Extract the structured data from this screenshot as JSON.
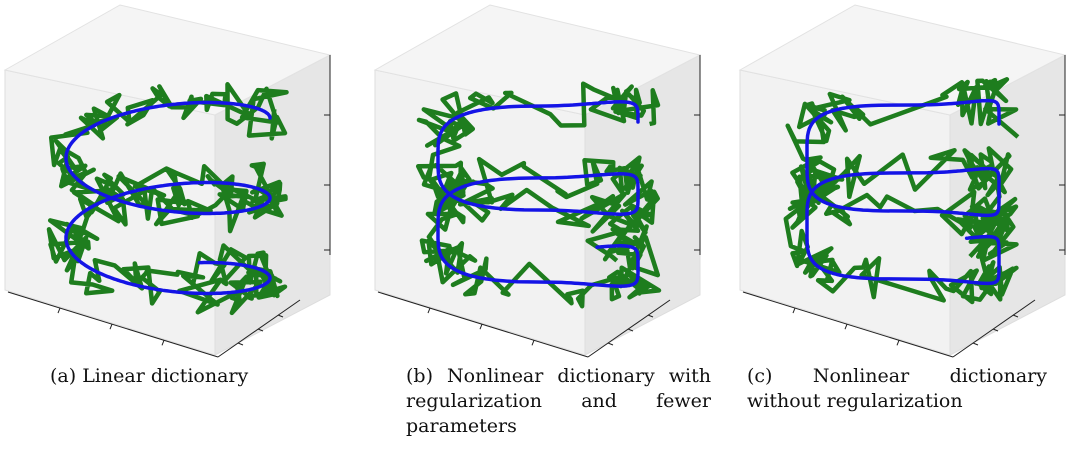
{
  "figure": {
    "captions": [
      "(a) Linear dictionary",
      "(b) Nonlinear dictionary with regularization and fewer parameters",
      "(c) Nonlinear dictionary without regularization"
    ]
  },
  "colors": {
    "noisy_trajectory": "#1e7d1e",
    "fitted_curve": "#1414e6",
    "pane_light": "#f2f2f2",
    "pane_dark": "#e6e6e6",
    "axis_line": "#222222"
  },
  "chart_data": [
    {
      "type": "line",
      "projection": "3d",
      "title": "",
      "grid": false,
      "tick_labels": false,
      "series": [
        {
          "color": "#1e7d1e",
          "style": "noisy helix",
          "turns": 2.2
        },
        {
          "color": "#1414e6",
          "style": "smooth circular helix",
          "turns": 2.2
        }
      ]
    },
    {
      "type": "line",
      "projection": "3d",
      "title": "",
      "grid": false,
      "tick_labels": false,
      "series": [
        {
          "color": "#1e7d1e",
          "style": "noisy helix",
          "turns": 2.2
        },
        {
          "color": "#1414e6",
          "style": "rounded-square helix",
          "turns": 2.2
        }
      ]
    },
    {
      "type": "line",
      "projection": "3d",
      "title": "",
      "grid": false,
      "tick_labels": false,
      "series": [
        {
          "color": "#1e7d1e",
          "style": "noisy helix",
          "turns": 2.2
        },
        {
          "color": "#1414e6",
          "style": "squared helix",
          "turns": 2.2
        }
      ]
    }
  ]
}
